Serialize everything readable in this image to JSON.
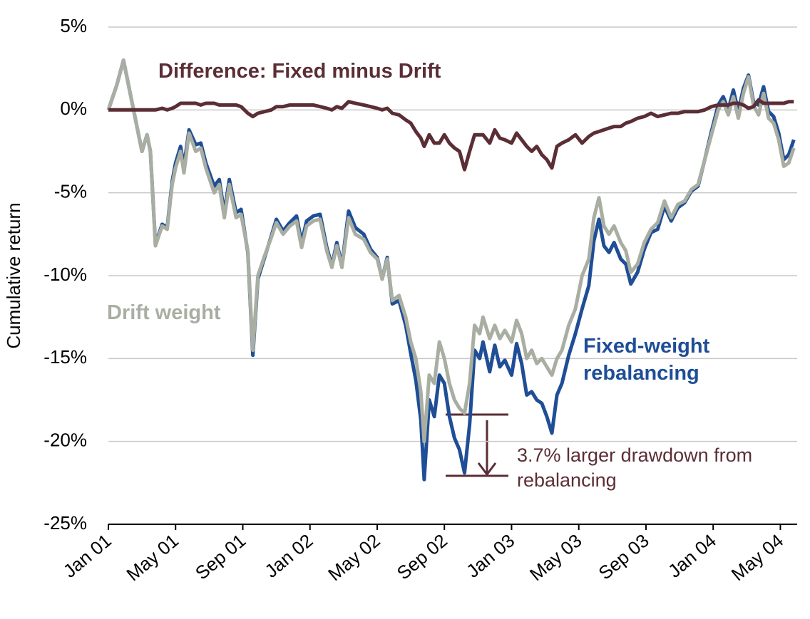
{
  "chart_data": {
    "type": "line",
    "y_label": "Cumulative return",
    "x": [
      0,
      0.5,
      0.9,
      1.5,
      2,
      2.3,
      2.5,
      2.8,
      3.2,
      3.5,
      3.8,
      4,
      4.3,
      4.5,
      4.8,
      5.2,
      5.5,
      5.8,
      6.3,
      6.6,
      6.9,
      7.2,
      7.6,
      7.9,
      8.3,
      8.6,
      8.9,
      9.3,
      9.7,
      10,
      10.4,
      10.8,
      11.2,
      11.5,
      11.8,
      12.2,
      12.6,
      13,
      13.3,
      13.6,
      13.9,
      14.3,
      14.7,
      15.2,
      15.6,
      16,
      16.3,
      16.6,
      16.9,
      17.3,
      17.7,
      18,
      18.3,
      18.6,
      18.8,
      19.1,
      19.4,
      19.7,
      20,
      20.3,
      20.6,
      20.9,
      21.2,
      21.5,
      21.8,
      22.1,
      22.3,
      22.7,
      23,
      23.3,
      23.6,
      24,
      24.3,
      24.6,
      24.9,
      25.2,
      25.5,
      25.8,
      26.1,
      26.4,
      26.7,
      27,
      27.4,
      27.8,
      28.2,
      28.6,
      28.9,
      29.2,
      29.5,
      29.8,
      30.1,
      30.5,
      30.8,
      31.1,
      31.5,
      31.9,
      32.3,
      32.7,
      33.1,
      33.5,
      33.9,
      34.3,
      34.7,
      35.1,
      35.5,
      35.9,
      36.3,
      36.6,
      36.9,
      37.2,
      37.5,
      37.8,
      38.1,
      38.4,
      38.7,
      39,
      39.3,
      39.6,
      39.9,
      40.2,
      40.5,
      40.8
    ],
    "xlim": [
      0,
      41
    ],
    "xticks": [
      {
        "value": 0,
        "label": "Jan 01"
      },
      {
        "value": 4,
        "label": "May 01"
      },
      {
        "value": 8,
        "label": "Sep 01"
      },
      {
        "value": 12,
        "label": "Jan 02"
      },
      {
        "value": 16,
        "label": "May 02"
      },
      {
        "value": 20,
        "label": "Sep 02"
      },
      {
        "value": 24,
        "label": "Jan 03"
      },
      {
        "value": 28,
        "label": "May 03"
      },
      {
        "value": 32,
        "label": "Sep 03"
      },
      {
        "value": 36,
        "label": "Jan 04"
      },
      {
        "value": 40,
        "label": "May 04"
      }
    ],
    "ylim": [
      -25,
      5
    ],
    "yticks": [
      {
        "value": 5,
        "label": "5%"
      },
      {
        "value": 0,
        "label": "0%"
      },
      {
        "value": -5,
        "label": "-5%"
      },
      {
        "value": -10,
        "label": "-10%"
      },
      {
        "value": -15,
        "label": "-15%"
      },
      {
        "value": -20,
        "label": "-20%"
      },
      {
        "value": -25,
        "label": "-25%"
      }
    ],
    "grid": true,
    "series": [
      {
        "name": "Fixed-weight rebalancing",
        "color": "#1f4e96",
        "values": [
          0,
          1.5,
          3,
          0,
          -2.5,
          -1.5,
          -2.5,
          -8.1,
          -6.9,
          -7.1,
          -4.3,
          -3.2,
          -2.2,
          -3.4,
          -1.2,
          -2.1,
          -2,
          -3.2,
          -4.6,
          -4.2,
          -6.2,
          -4.2,
          -6.2,
          -6,
          -8.6,
          -14.8,
          -10.2,
          -8.9,
          -7.6,
          -6.6,
          -7.3,
          -6.8,
          -6.4,
          -8,
          -6.7,
          -6.4,
          -6.3,
          -8.3,
          -9.4,
          -8,
          -9.4,
          -6.1,
          -7.1,
          -7.5,
          -8.4,
          -8.9,
          -10.2,
          -8.9,
          -11.7,
          -11.5,
          -13,
          -14.7,
          -16.3,
          -18.7,
          -22.3,
          -17.5,
          -18.5,
          -16,
          -16.5,
          -18.5,
          -19.8,
          -20.5,
          -21.9,
          -19,
          -14.5,
          -15,
          -14,
          -15.8,
          -14.2,
          -15.5,
          -15.1,
          -16,
          -14.1,
          -15.3,
          -17.2,
          -17,
          -17.5,
          -17.7,
          -18.5,
          -19.5,
          -17.2,
          -16.5,
          -14.8,
          -13.5,
          -12,
          -10.6,
          -7.9,
          -6.6,
          -8.2,
          -8.6,
          -8,
          -9,
          -9.3,
          -10.5,
          -9.8,
          -8.4,
          -7.4,
          -7.2,
          -5.8,
          -6.7,
          -5.9,
          -5.6,
          -4.9,
          -4.6,
          -3,
          -1.3,
          0.3,
          0.8,
          0,
          1.2,
          -0.1,
          1.3,
          2.1,
          0.5,
          0.3,
          1.4,
          -0.1,
          -0.4,
          -1.4,
          -3,
          -2.7,
          -1.8
        ]
      },
      {
        "name": "Drift weight",
        "color": "#a9aea2",
        "values": [
          0,
          1.5,
          3,
          0,
          -2.5,
          -1.5,
          -2.5,
          -8.2,
          -7,
          -7.2,
          -4.5,
          -3.5,
          -2.5,
          -3.8,
          -1.4,
          -2.5,
          -2.3,
          -3.5,
          -5,
          -4.5,
          -6.5,
          -4.5,
          -6.5,
          -6.3,
          -8.5,
          -14.5,
          -10,
          -8.8,
          -7.7,
          -6.8,
          -7.5,
          -7,
          -6.7,
          -8.3,
          -7,
          -6.7,
          -6.6,
          -8.5,
          -9.5,
          -8.2,
          -9.5,
          -6.5,
          -7.5,
          -7.8,
          -8.6,
          -9,
          -10.2,
          -9,
          -11.5,
          -11.2,
          -12.5,
          -14,
          -15,
          -17,
          -20,
          -16,
          -16.5,
          -14,
          -15,
          -16.5,
          -17.5,
          -18,
          -18.3,
          -16.5,
          -13,
          -13.5,
          -12.5,
          -13.8,
          -13,
          -13.8,
          -13.3,
          -14,
          -12.7,
          -13.5,
          -15,
          -14.5,
          -15.3,
          -15,
          -15.5,
          -16,
          -15,
          -14.5,
          -13,
          -12,
          -10,
          -9,
          -6.5,
          -5.3,
          -7,
          -7.5,
          -7,
          -8,
          -8.5,
          -9.8,
          -9.3,
          -8,
          -7.2,
          -6.8,
          -5.5,
          -6.5,
          -5.7,
          -5.5,
          -4.8,
          -4.5,
          -3,
          -1.5,
          0,
          0.5,
          -0.3,
          0.8,
          -0.5,
          1,
          2,
          0.3,
          -0.3,
          1,
          -0.5,
          -0.8,
          -1.8,
          -3.4,
          -3.2,
          -2.3
        ]
      },
      {
        "name": "Difference: Fixed minus Drift",
        "color": "#5b2e35",
        "values": [
          0,
          0,
          0,
          0,
          0,
          0,
          0,
          0,
          0.1,
          0,
          0.1,
          0.2,
          0.4,
          0.4,
          0.4,
          0.4,
          0.3,
          0.4,
          0.4,
          0.3,
          0.3,
          0.3,
          0.3,
          0.2,
          -0.2,
          -0.4,
          -0.2,
          -0.1,
          0,
          0.2,
          0.2,
          0.3,
          0.3,
          0.3,
          0.3,
          0.3,
          0.2,
          0.1,
          0,
          0.2,
          0.1,
          0.5,
          0.4,
          0.3,
          0.2,
          0.1,
          0,
          0.1,
          -0.2,
          -0.3,
          -0.6,
          -0.8,
          -1.3,
          -1.7,
          -2.2,
          -1.5,
          -2,
          -2,
          -1.5,
          -2,
          -2.3,
          -2.5,
          -3.6,
          -2.5,
          -1.5,
          -1.5,
          -1.5,
          -2,
          -1.2,
          -1.7,
          -1.8,
          -2,
          -1.4,
          -1.8,
          -2.2,
          -2.5,
          -2.2,
          -2.7,
          -3,
          -3.5,
          -2.2,
          -2,
          -1.8,
          -1.5,
          -2,
          -1.6,
          -1.4,
          -1.3,
          -1.2,
          -1.1,
          -1,
          -1,
          -0.8,
          -0.7,
          -0.5,
          -0.4,
          -0.2,
          -0.4,
          -0.3,
          -0.2,
          -0.2,
          -0.1,
          -0.1,
          -0.1,
          0,
          0.2,
          0.3,
          0.3,
          0.3,
          0.4,
          0.4,
          0.3,
          0.1,
          0.2,
          0.6,
          0.4,
          0.4,
          0.4,
          0.4,
          0.4,
          0.5,
          0.5
        ]
      }
    ],
    "annotation": "3.7% larger drawdown from rebalancing"
  }
}
